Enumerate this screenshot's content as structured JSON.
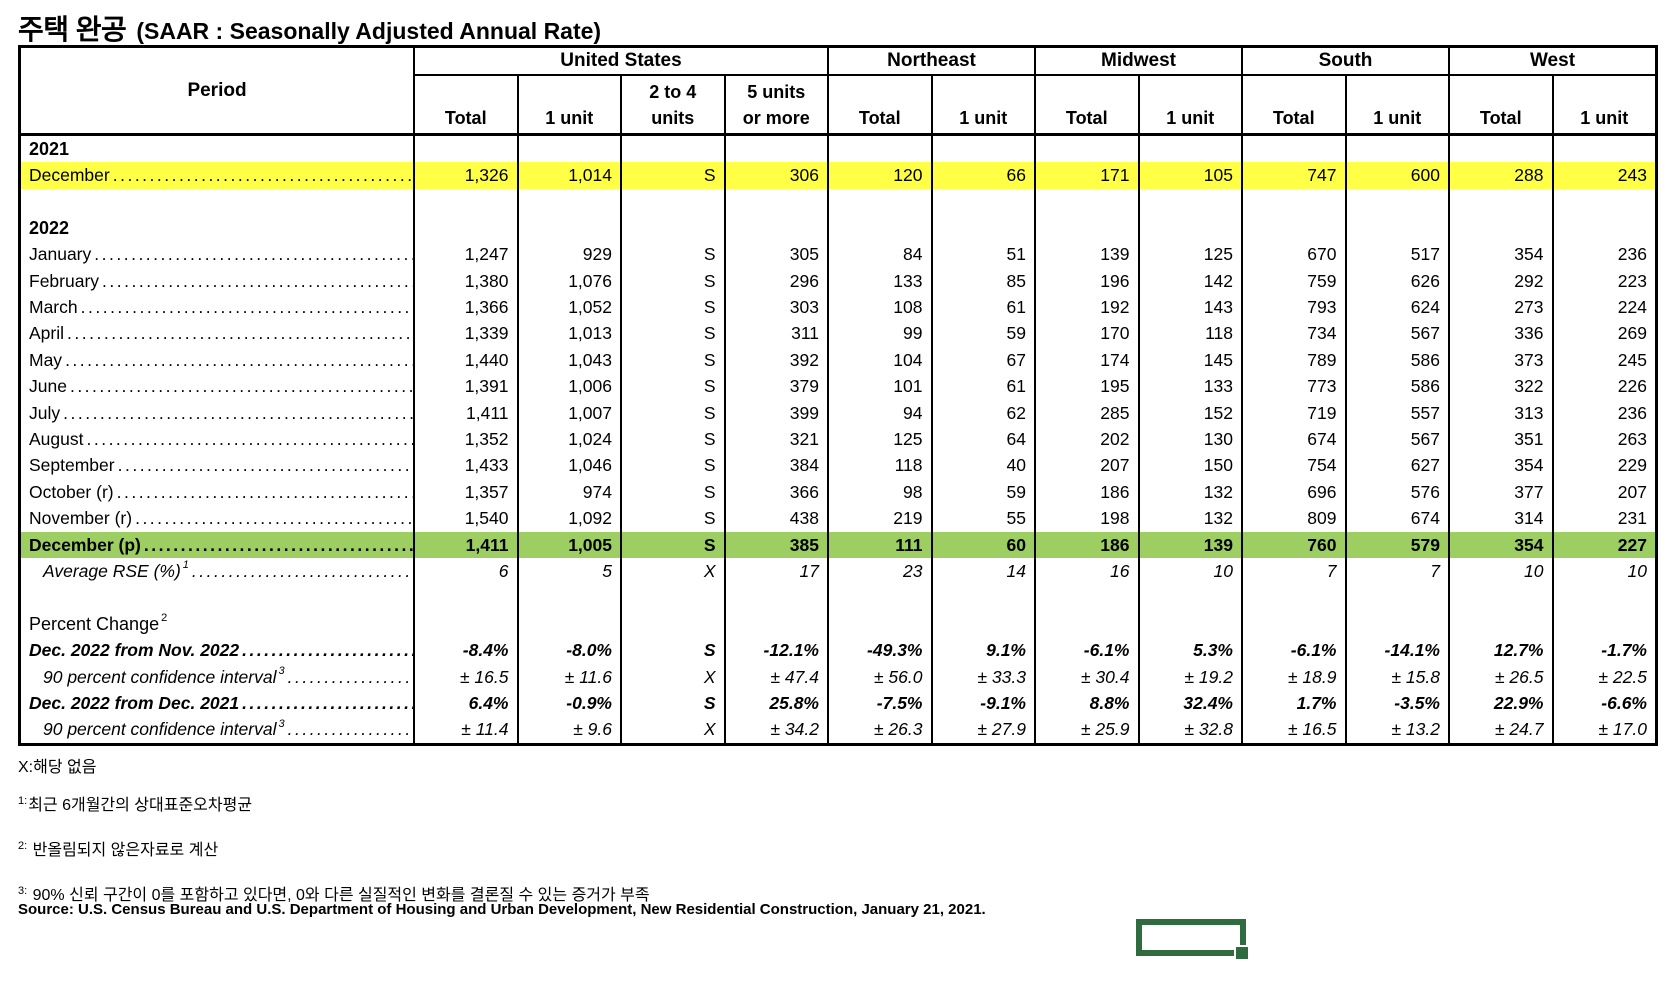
{
  "title": {
    "korean": "주택 완공",
    "english": "(SAAR : Seasonally Adjusted Annual Rate)"
  },
  "colors": {
    "highlight_yellow": "#FFFF45",
    "highlight_green": "#9CCE62",
    "selection_green": "#2F6B3F"
  },
  "table": {
    "header": {
      "period": "Period",
      "groups": [
        {
          "label": "United States",
          "span": 4
        },
        {
          "label": "Northeast",
          "span": 2
        },
        {
          "label": "Midwest",
          "span": 2
        },
        {
          "label": "South",
          "span": 2
        },
        {
          "label": "West",
          "span": 2
        }
      ],
      "columns": [
        [
          "Total"
        ],
        [
          "1 unit"
        ],
        [
          "2 to 4",
          "units"
        ],
        [
          "5 units",
          "or more"
        ],
        [
          "Total"
        ],
        [
          "1 unit"
        ],
        [
          "Total"
        ],
        [
          "1 unit"
        ],
        [
          "Total"
        ],
        [
          "1 unit"
        ],
        [
          "Total"
        ],
        [
          "1 unit"
        ]
      ]
    },
    "rows": [
      {
        "kind": "year",
        "label": "2021"
      },
      {
        "kind": "data",
        "label": "December",
        "dots": true,
        "highlight": "yellow",
        "values": [
          "1,326",
          "1,014",
          "S",
          "306",
          "120",
          "66",
          "171",
          "105",
          "747",
          "600",
          "288",
          "243"
        ]
      },
      {
        "kind": "blank"
      },
      {
        "kind": "year",
        "label": "2022"
      },
      {
        "kind": "data",
        "label": "January",
        "dots": true,
        "values": [
          "1,247",
          "929",
          "S",
          "305",
          "84",
          "51",
          "139",
          "125",
          "670",
          "517",
          "354",
          "236"
        ]
      },
      {
        "kind": "data",
        "label": "February",
        "dots": true,
        "values": [
          "1,380",
          "1,076",
          "S",
          "296",
          "133",
          "85",
          "196",
          "142",
          "759",
          "626",
          "292",
          "223"
        ]
      },
      {
        "kind": "data",
        "label": "March",
        "dots": true,
        "values": [
          "1,366",
          "1,052",
          "S",
          "303",
          "108",
          "61",
          "192",
          "143",
          "793",
          "624",
          "273",
          "224"
        ]
      },
      {
        "kind": "data",
        "label": "April",
        "dots": true,
        "values": [
          "1,339",
          "1,013",
          "S",
          "311",
          "99",
          "59",
          "170",
          "118",
          "734",
          "567",
          "336",
          "269"
        ]
      },
      {
        "kind": "data",
        "label": "May",
        "dots": true,
        "values": [
          "1,440",
          "1,043",
          "S",
          "392",
          "104",
          "67",
          "174",
          "145",
          "789",
          "586",
          "373",
          "245"
        ]
      },
      {
        "kind": "data",
        "label": "June",
        "dots": true,
        "values": [
          "1,391",
          "1,006",
          "S",
          "379",
          "101",
          "61",
          "195",
          "133",
          "773",
          "586",
          "322",
          "226"
        ]
      },
      {
        "kind": "data",
        "label": "July",
        "dots": true,
        "values": [
          "1,411",
          "1,007",
          "S",
          "399",
          "94",
          "62",
          "285",
          "152",
          "719",
          "557",
          "313",
          "236"
        ]
      },
      {
        "kind": "data",
        "label": "August",
        "dots": true,
        "values": [
          "1,352",
          "1,024",
          "S",
          "321",
          "125",
          "64",
          "202",
          "130",
          "674",
          "567",
          "351",
          "263"
        ]
      },
      {
        "kind": "data",
        "label": "September",
        "dots": true,
        "values": [
          "1,433",
          "1,046",
          "S",
          "384",
          "118",
          "40",
          "207",
          "150",
          "754",
          "627",
          "354",
          "229"
        ]
      },
      {
        "kind": "data",
        "label": "October (r)",
        "dots": true,
        "values": [
          "1,357",
          "974",
          "S",
          "366",
          "98",
          "59",
          "186",
          "132",
          "696",
          "576",
          "377",
          "207"
        ]
      },
      {
        "kind": "data",
        "label": "November (r)",
        "dots": true,
        "values": [
          "1,540",
          "1,092",
          "S",
          "438",
          "219",
          "55",
          "198",
          "132",
          "809",
          "674",
          "314",
          "231"
        ]
      },
      {
        "kind": "data",
        "label": "December (p)",
        "dots": true,
        "highlight": "green",
        "bold": true,
        "values": [
          "1,411",
          "1,005",
          "S",
          "385",
          "111",
          "60",
          "186",
          "139",
          "760",
          "579",
          "354",
          "227"
        ]
      },
      {
        "kind": "data",
        "label": "Average RSE (%)",
        "sup": "1",
        "dots": true,
        "italic": true,
        "indent": true,
        "values": [
          "6",
          "5",
          "X",
          "17",
          "23",
          "14",
          "16",
          "10",
          "7",
          "7",
          "10",
          "10"
        ]
      },
      {
        "kind": "blank"
      },
      {
        "kind": "section",
        "label": "Percent Change",
        "sup": "2"
      },
      {
        "kind": "data",
        "label": "Dec. 2022 from Nov. 2022",
        "dots": true,
        "bold": true,
        "italic": true,
        "values": [
          "-8.4%",
          "-8.0%",
          "S",
          "-12.1%",
          "-49.3%",
          "9.1%",
          "-6.1%",
          "5.3%",
          "-6.1%",
          "-14.1%",
          "12.7%",
          "-1.7%"
        ]
      },
      {
        "kind": "data",
        "label": "90 percent confidence interval",
        "sup": "3",
        "dots": true,
        "italic": true,
        "indent": true,
        "values": [
          "± 16.5",
          "± 11.6",
          "X",
          "± 47.4",
          "± 56.0",
          "± 33.3",
          "± 30.4",
          "± 19.2",
          "± 18.9",
          "± 15.8",
          "± 26.5",
          "± 22.5"
        ]
      },
      {
        "kind": "data",
        "label": "Dec. 2022 from Dec. 2021",
        "dots": true,
        "bold": true,
        "italic": true,
        "values": [
          "6.4%",
          "-0.9%",
          "S",
          "25.8%",
          "-7.5%",
          "-9.1%",
          "8.8%",
          "32.4%",
          "1.7%",
          "-3.5%",
          "22.9%",
          "-6.6%"
        ]
      },
      {
        "kind": "data",
        "label": "90 percent confidence interval",
        "sup": "3",
        "dots": true,
        "italic": true,
        "indent": true,
        "values": [
          "± 11.4",
          "± 9.6",
          "X",
          "± 34.2",
          "± 26.3",
          "± 27.9",
          "± 25.9",
          "± 32.8",
          "± 16.5",
          "± 13.2",
          "± 24.7",
          "± 17.0"
        ]
      }
    ]
  },
  "footnotes": [
    {
      "sup": "",
      "text": "X:해당 없음"
    },
    {
      "sup": "1:",
      "text": "최근 6개월간의 상대표준오차평균"
    },
    {
      "sup": "2:",
      "text": " 반올림되지 않은자료로 계산"
    },
    {
      "sup": "3:",
      "text": " 90% 신뢰 구간이 0를 포함하고 있다면, 0와 다른 실질적인 변화를 결론질 수 있는 증거가 부족"
    }
  ],
  "source": "Source: U.S. Census Bureau and U.S. Department of Housing and Urban Development, New Residential Construction, January 21, 2021."
}
